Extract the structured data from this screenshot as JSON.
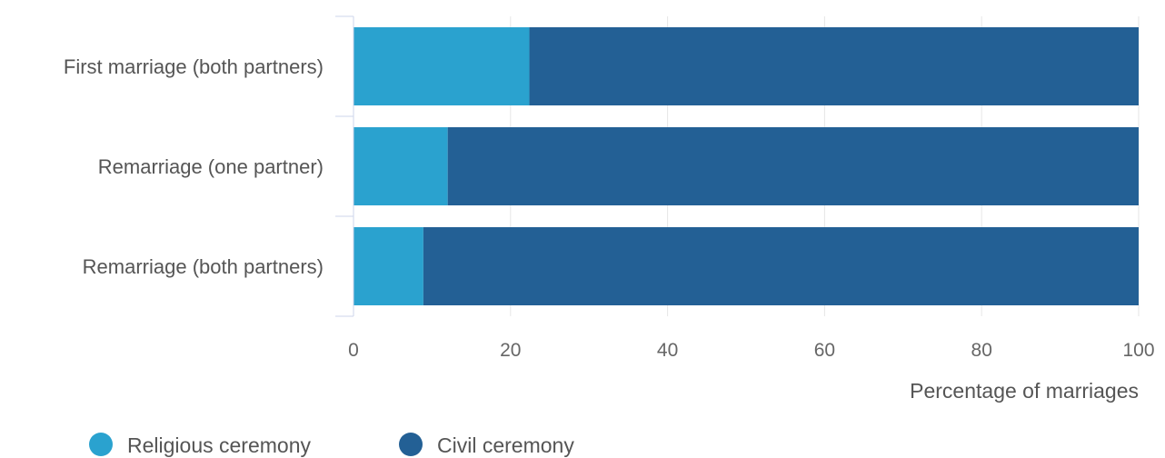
{
  "chart_data": {
    "type": "bar",
    "orientation": "horizontal",
    "stacked": true,
    "categories": [
      "First marriage (both partners)",
      "Remarriage (one partner)",
      "Remarriage (both partners)"
    ],
    "series": [
      {
        "name": "Religious ceremony",
        "color": "#2aa2cf",
        "values": [
          22.4,
          12.0,
          8.9
        ]
      },
      {
        "name": "Civil ceremony",
        "color": "#236095",
        "values": [
          77.6,
          88.0,
          91.1
        ]
      }
    ],
    "xlabel": "Percentage of marriages",
    "ylabel": "",
    "xlim": [
      0,
      100
    ],
    "xticks": [
      "0",
      "20",
      "40",
      "60",
      "80",
      "100"
    ],
    "grid": true,
    "legend_position": "bottom-left"
  }
}
